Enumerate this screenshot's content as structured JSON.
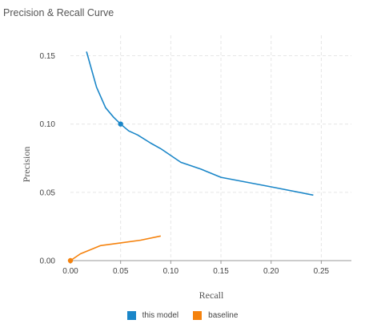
{
  "title": "Precision & Recall Curve",
  "chart_data": {
    "type": "line",
    "title": "Precision & Recall Curve",
    "xlabel": "Recall",
    "ylabel": "Precision",
    "xlim": [
      0.0,
      0.28
    ],
    "ylim": [
      0.0,
      0.165
    ],
    "x_ticks": [
      0.0,
      0.05,
      0.1,
      0.15,
      0.2,
      0.25
    ],
    "x_tick_labels": [
      "0.00",
      "0.05",
      "0.10",
      "0.15",
      "0.20",
      "0.25"
    ],
    "y_ticks": [
      0.0,
      0.05,
      0.1,
      0.15
    ],
    "y_tick_labels": [
      "0.00",
      "0.05",
      "0.10",
      "0.15"
    ],
    "grid": true,
    "legend_position": "bottom-center",
    "series": [
      {
        "name": "this model",
        "color": "#1a86c8",
        "marker_index": 4,
        "points": [
          [
            0.016,
            0.153
          ],
          [
            0.026,
            0.127
          ],
          [
            0.035,
            0.112
          ],
          [
            0.043,
            0.105
          ],
          [
            0.05,
            0.1
          ],
          [
            0.058,
            0.095
          ],
          [
            0.067,
            0.092
          ],
          [
            0.08,
            0.086
          ],
          [
            0.09,
            0.082
          ],
          [
            0.11,
            0.072
          ],
          [
            0.13,
            0.067
          ],
          [
            0.15,
            0.061
          ],
          [
            0.2,
            0.054
          ],
          [
            0.242,
            0.048
          ]
        ]
      },
      {
        "name": "baseline",
        "color": "#f5820d",
        "marker_index": 0,
        "points": [
          [
            0.0,
            0.0
          ],
          [
            0.01,
            0.005
          ],
          [
            0.02,
            0.008
          ],
          [
            0.03,
            0.011
          ],
          [
            0.05,
            0.013
          ],
          [
            0.07,
            0.015
          ],
          [
            0.09,
            0.018
          ]
        ]
      }
    ]
  }
}
